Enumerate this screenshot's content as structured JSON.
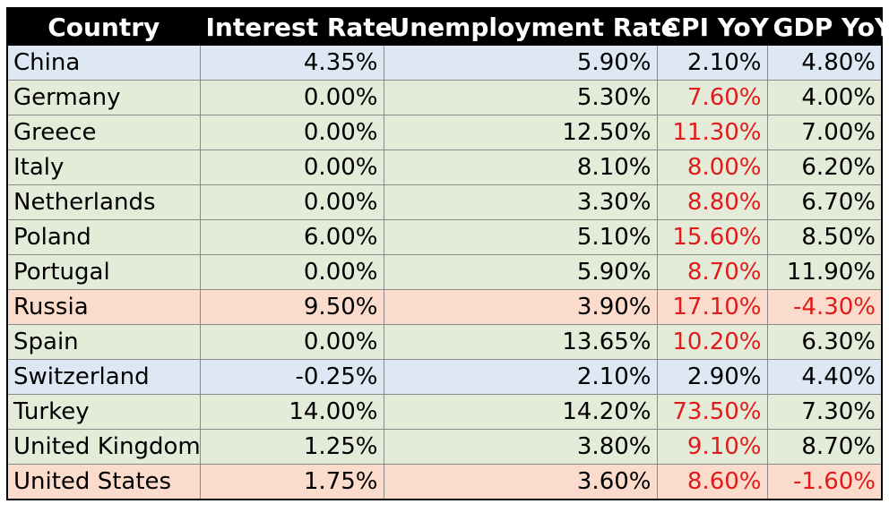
{
  "table": {
    "headers": [
      "Country",
      "Interest Rate",
      "Unemployment Rate",
      "CPI YoY",
      "GDP YoY"
    ],
    "colors": {
      "header_bg": "#000000",
      "header_text": "#ffffff",
      "blue_row": "#dde8f4",
      "green_row": "#e4ecd9",
      "orange_row": "#fbdccc",
      "highlight_text": "#e11a1a"
    },
    "rows": [
      {
        "country": "China",
        "interest": "4.35%",
        "unemployment": "5.90%",
        "cpi": "2.10%",
        "gdp": "4.80%",
        "bg": "blue",
        "cpi_red": false,
        "gdp_red": false
      },
      {
        "country": "Germany",
        "interest": "0.00%",
        "unemployment": "5.30%",
        "cpi": "7.60%",
        "gdp": "4.00%",
        "bg": "green",
        "cpi_red": true,
        "gdp_red": false
      },
      {
        "country": "Greece",
        "interest": "0.00%",
        "unemployment": "12.50%",
        "cpi": "11.30%",
        "gdp": "7.00%",
        "bg": "green",
        "cpi_red": true,
        "gdp_red": false
      },
      {
        "country": "Italy",
        "interest": "0.00%",
        "unemployment": "8.10%",
        "cpi": "8.00%",
        "gdp": "6.20%",
        "bg": "green",
        "cpi_red": true,
        "gdp_red": false
      },
      {
        "country": "Netherlands",
        "interest": "0.00%",
        "unemployment": "3.30%",
        "cpi": "8.80%",
        "gdp": "6.70%",
        "bg": "green",
        "cpi_red": true,
        "gdp_red": false
      },
      {
        "country": "Poland",
        "interest": "6.00%",
        "unemployment": "5.10%",
        "cpi": "15.60%",
        "gdp": "8.50%",
        "bg": "green",
        "cpi_red": true,
        "gdp_red": false
      },
      {
        "country": "Portugal",
        "interest": "0.00%",
        "unemployment": "5.90%",
        "cpi": "8.70%",
        "gdp": "11.90%",
        "bg": "green",
        "cpi_red": true,
        "gdp_red": false
      },
      {
        "country": "Russia",
        "interest": "9.50%",
        "unemployment": "3.90%",
        "cpi": "17.10%",
        "gdp": "-4.30%",
        "bg": "orange",
        "cpi_red": true,
        "gdp_red": true
      },
      {
        "country": "Spain",
        "interest": "0.00%",
        "unemployment": "13.65%",
        "cpi": "10.20%",
        "gdp": "6.30%",
        "bg": "green",
        "cpi_red": true,
        "gdp_red": false
      },
      {
        "country": "Switzerland",
        "interest": "-0.25%",
        "unemployment": "2.10%",
        "cpi": "2.90%",
        "gdp": "4.40%",
        "bg": "blue",
        "cpi_red": false,
        "gdp_red": false
      },
      {
        "country": "Turkey",
        "interest": "14.00%",
        "unemployment": "14.20%",
        "cpi": "73.50%",
        "gdp": "7.30%",
        "bg": "green",
        "cpi_red": true,
        "gdp_red": false
      },
      {
        "country": "United Kingdom",
        "interest": "1.25%",
        "unemployment": "3.80%",
        "cpi": "9.10%",
        "gdp": "8.70%",
        "bg": "green",
        "cpi_red": true,
        "gdp_red": false
      },
      {
        "country": "United States",
        "interest": "1.75%",
        "unemployment": "3.60%",
        "cpi": "8.60%",
        "gdp": "-1.60%",
        "bg": "orange",
        "cpi_red": true,
        "gdp_red": true
      }
    ]
  }
}
